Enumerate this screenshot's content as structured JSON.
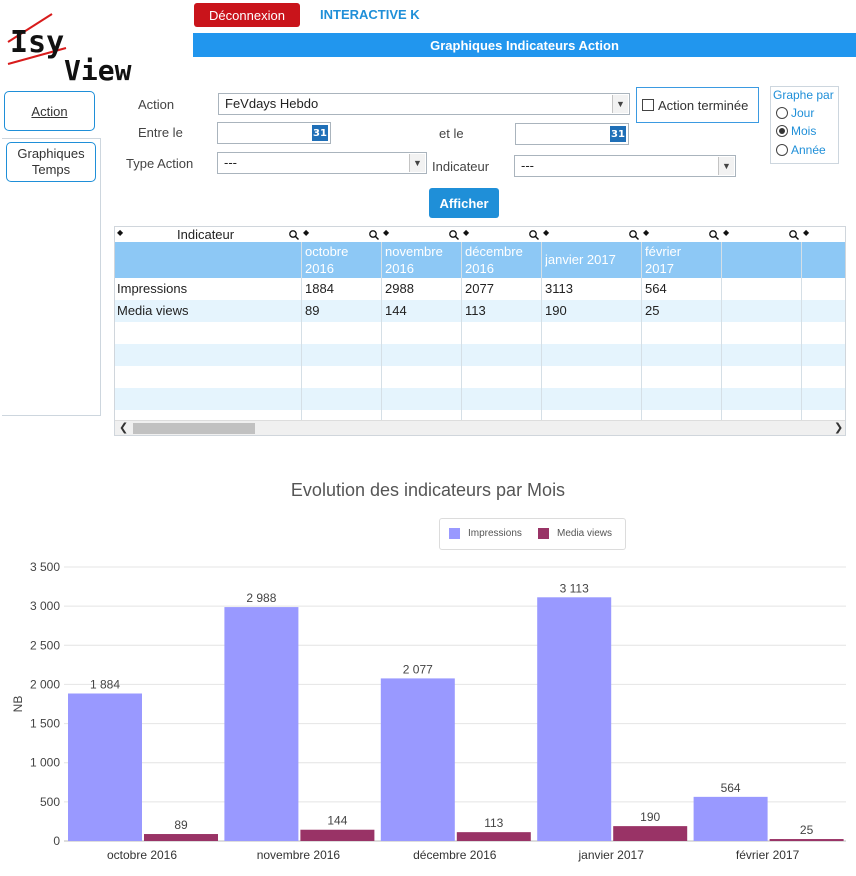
{
  "logo": {
    "text_top": "Isy",
    "text_bottom": "View"
  },
  "header": {
    "logout_label": "Déconnexion",
    "client_name": "INTERACTIVE K",
    "page_title": "Graphiques Indicateurs Action"
  },
  "nav": {
    "action_label": "Action",
    "graphs_label_1": "Graphiques",
    "graphs_label_2": "Temps"
  },
  "form": {
    "action_label": "Action",
    "action_value": "FeVdays Hebdo",
    "between_label": "Entre le",
    "and_label": "et le",
    "calendar_glyph": "31",
    "type_label": "Type Action",
    "type_value": "---",
    "indicator_label": "Indicateur",
    "indicator_value": "---",
    "done_label": "Action terminée",
    "graph_by_label": "Graphe par",
    "graph_by_options": [
      "Jour",
      "Mois",
      "Année"
    ],
    "graph_by_selected": "Mois",
    "show_button": "Afficher"
  },
  "grid": {
    "first_col_header": "Indicateur",
    "month_headers": [
      [
        "octobre",
        "2016"
      ],
      [
        "novembre",
        "2016"
      ],
      [
        "décembre",
        "2016"
      ],
      [
        "janvier 2017",
        ""
      ],
      [
        "février",
        "2017"
      ]
    ],
    "rows": [
      {
        "label": "Impressions",
        "values": [
          "1884",
          "2988",
          "2077",
          "3113",
          "564"
        ]
      },
      {
        "label": "Media views",
        "values": [
          "89",
          "144",
          "113",
          "190",
          "25"
        ]
      }
    ]
  },
  "chart_data": {
    "type": "bar",
    "title": "Evolution des indicateurs par Mois",
    "ylabel": "NB",
    "xlabel": "",
    "categories": [
      "octobre 2016",
      "novembre 2016",
      "décembre 2016",
      "janvier 2017",
      "février 2017"
    ],
    "series": [
      {
        "name": "Impressions",
        "values": [
          1884,
          2988,
          2077,
          3113,
          564
        ],
        "labels": [
          "1 884",
          "2 988",
          "2 077",
          "3 113",
          "564"
        ],
        "color": "#9999ff"
      },
      {
        "name": "Media views",
        "values": [
          89,
          144,
          113,
          190,
          25
        ],
        "labels": [
          "89",
          "144",
          "113",
          "190",
          "25"
        ],
        "color": "#993366"
      }
    ],
    "ylim": [
      0,
      3500
    ],
    "y_ticks": [
      0,
      500,
      1000,
      1500,
      2000,
      2500,
      3000,
      3500
    ],
    "y_tick_labels": [
      "0",
      "500",
      "1 000",
      "1 500",
      "2 000",
      "2 500",
      "3 000",
      "3 500"
    ],
    "grid": true,
    "legend_position": "top"
  }
}
